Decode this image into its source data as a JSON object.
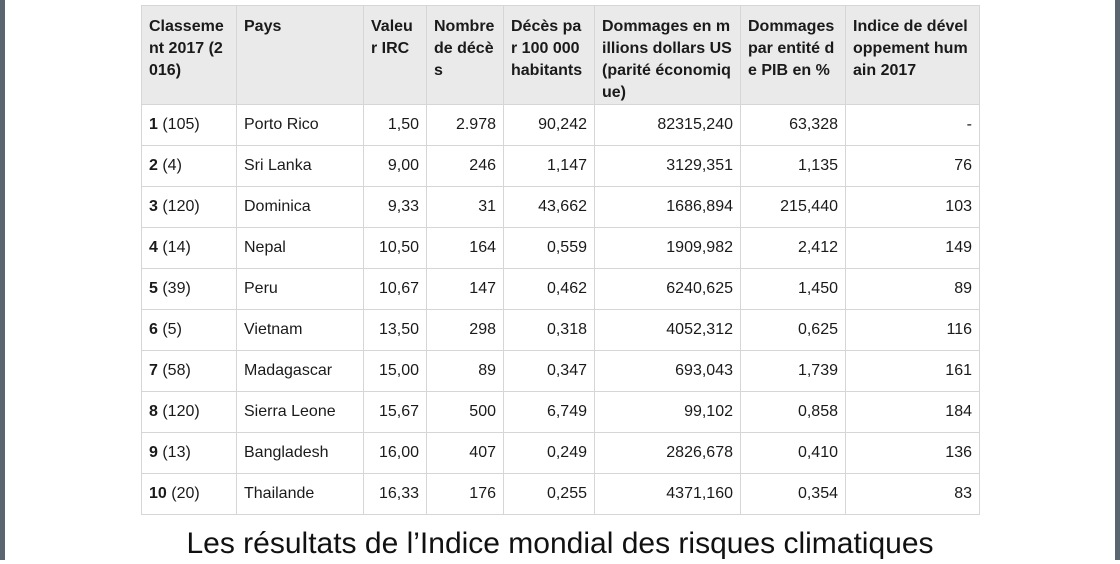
{
  "table": {
    "headers": [
      "Classement 2017 (2016)",
      "Pays",
      "Valeur IRC",
      "Nombre de décès",
      "Décès par 100 000 habitants",
      "Dommages en millions dollars US (parité économique)",
      "Dommages par entité de PIB en %",
      "Indice de développement humain 2017"
    ],
    "rows": [
      {
        "rank": "1",
        "prev": " (105)",
        "pays": "Porto Rico",
        "irc": "1,50",
        "deces": "2.978",
        "deces100k": "90,242",
        "dommages": "82315,240",
        "pib": "63,328",
        "idh": "-"
      },
      {
        "rank": "2",
        "prev": " (4)",
        "pays": "Sri Lanka",
        "irc": "9,00",
        "deces": "246",
        "deces100k": "1,147",
        "dommages": "3129,351",
        "pib": "1,135",
        "idh": "76"
      },
      {
        "rank": "3",
        "prev": " (120)",
        "pays": "Dominica",
        "irc": "9,33",
        "deces": "31",
        "deces100k": "43,662",
        "dommages": "1686,894",
        "pib": "215,440",
        "idh": "103"
      },
      {
        "rank": "4",
        "prev": " (14)",
        "pays": "Nepal",
        "irc": "10,50",
        "deces": "164",
        "deces100k": "0,559",
        "dommages": "1909,982",
        "pib": "2,412",
        "idh": "149"
      },
      {
        "rank": "5",
        "prev": " (39)",
        "pays": "Peru",
        "irc": "10,67",
        "deces": "147",
        "deces100k": "0,462",
        "dommages": "6240,625",
        "pib": "1,450",
        "idh": "89"
      },
      {
        "rank": "6",
        "prev": " (5)",
        "pays": "Vietnam",
        "irc": "13,50",
        "deces": "298",
        "deces100k": "0,318",
        "dommages": "4052,312",
        "pib": "0,625",
        "idh": "116"
      },
      {
        "rank": "7",
        "prev": " (58)",
        "pays": "Madagascar",
        "irc": "15,00",
        "deces": "89",
        "deces100k": "0,347",
        "dommages": "693,043",
        "pib": "1,739",
        "idh": "161"
      },
      {
        "rank": "8",
        "prev": " (120)",
        "pays": "Sierra Leone",
        "irc": "15,67",
        "deces": "500",
        "deces100k": "6,749",
        "dommages": "99,102",
        "pib": "0,858",
        "idh": "184"
      },
      {
        "rank": "9",
        "prev": " (13)",
        "pays": "Bangladesh",
        "irc": "16,00",
        "deces": "407",
        "deces100k": "0,249",
        "dommages": "2826,678",
        "pib": "0,410",
        "idh": "136"
      },
      {
        "rank": "10",
        "prev": " (20)",
        "pays": "Thailande",
        "irc": "16,33",
        "deces": "176",
        "deces100k": "0,255",
        "dommages": "4371,160",
        "pib": "0,354",
        "idh": "83"
      }
    ]
  },
  "caption": "Les résultats de l’Indice mondial des risques climatiques"
}
